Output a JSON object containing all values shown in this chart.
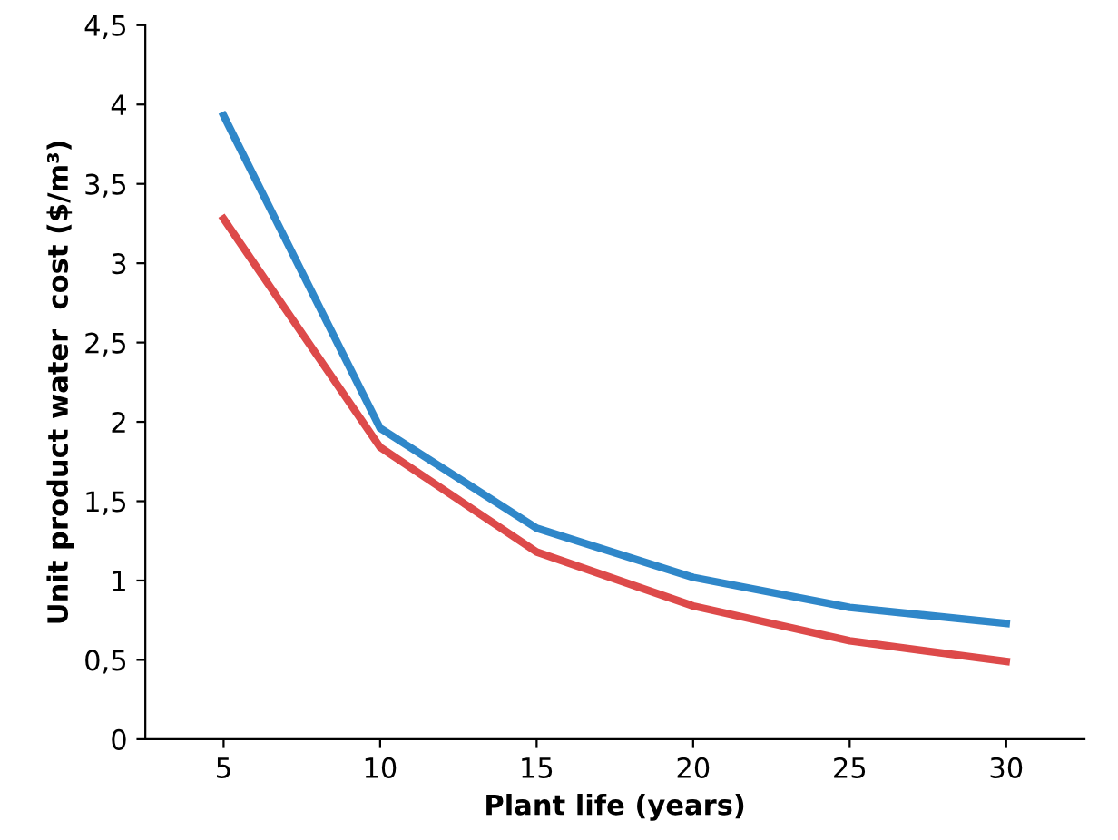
{
  "chart_data": {
    "type": "line",
    "xlabel": "Plant life (years)",
    "ylabel": "Unit product water  cost ($/m³)",
    "categories": [
      "5",
      "10",
      "15",
      "20",
      "25",
      "30"
    ],
    "series": [
      {
        "color": "#2f87c9",
        "values": [
          3.93,
          1.96,
          1.33,
          1.02,
          0.83,
          0.73
        ]
      },
      {
        "color": "#dd4a4a",
        "values": [
          3.28,
          1.84,
          1.18,
          0.84,
          0.62,
          0.49
        ]
      }
    ],
    "ylim": [
      0,
      4.5
    ],
    "yticks": [
      0,
      {
        "value": 0.5,
        "label": "0,5"
      },
      1,
      {
        "value": 1.5,
        "label": "1,5"
      },
      2,
      {
        "value": 2.5,
        "label": "2,5"
      },
      3,
      {
        "value": 3.5,
        "label": "3,5"
      },
      4,
      {
        "value": 4.5,
        "label": "4,5"
      }
    ],
    "grid": false
  }
}
